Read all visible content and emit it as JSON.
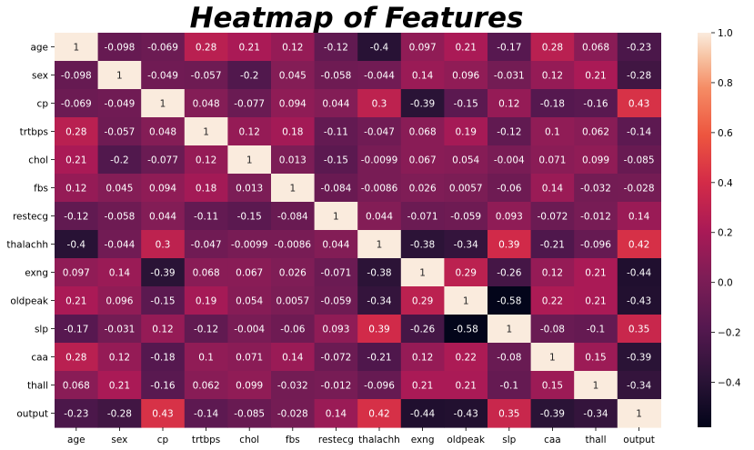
{
  "chart_data": {
    "type": "heatmap",
    "title": "Heatmap of Features",
    "labels": [
      "age",
      "sex",
      "cp",
      "trtbps",
      "chol",
      "fbs",
      "restecg",
      "thalachh",
      "exng",
      "oldpeak",
      "slp",
      "caa",
      "thall",
      "output"
    ],
    "matrix": [
      [
        1,
        -0.098,
        -0.069,
        0.28,
        0.21,
        0.12,
        -0.12,
        -0.4,
        0.097,
        0.21,
        -0.17,
        0.28,
        0.068,
        -0.23
      ],
      [
        -0.098,
        1,
        -0.049,
        -0.057,
        -0.2,
        0.045,
        -0.058,
        -0.044,
        0.14,
        0.096,
        -0.031,
        0.12,
        0.21,
        -0.28
      ],
      [
        -0.069,
        -0.049,
        1,
        0.048,
        -0.077,
        0.094,
        0.044,
        0.3,
        -0.39,
        -0.15,
        0.12,
        -0.18,
        -0.16,
        0.43
      ],
      [
        0.28,
        -0.057,
        0.048,
        1,
        0.12,
        0.18,
        -0.11,
        -0.047,
        0.068,
        0.19,
        -0.12,
        0.1,
        0.062,
        -0.14
      ],
      [
        0.21,
        -0.2,
        -0.077,
        0.12,
        1,
        0.013,
        -0.15,
        -0.0099,
        0.067,
        0.054,
        -0.004,
        0.071,
        0.099,
        -0.085
      ],
      [
        0.12,
        0.045,
        0.094,
        0.18,
        0.013,
        1,
        -0.084,
        -0.0086,
        0.026,
        0.0057,
        -0.06,
        0.14,
        -0.032,
        -0.028
      ],
      [
        -0.12,
        -0.058,
        0.044,
        -0.11,
        -0.15,
        -0.084,
        1,
        0.044,
        -0.071,
        -0.059,
        0.093,
        -0.072,
        -0.012,
        0.14
      ],
      [
        -0.4,
        -0.044,
        0.3,
        -0.047,
        -0.0099,
        -0.0086,
        0.044,
        1,
        -0.38,
        -0.34,
        0.39,
        -0.21,
        -0.096,
        0.42
      ],
      [
        0.097,
        0.14,
        -0.39,
        0.068,
        0.067,
        0.026,
        -0.071,
        -0.38,
        1,
        0.29,
        -0.26,
        0.12,
        0.21,
        -0.44
      ],
      [
        0.21,
        0.096,
        -0.15,
        0.19,
        0.054,
        0.0057,
        -0.059,
        -0.34,
        0.29,
        1,
        -0.58,
        0.22,
        0.21,
        -0.43
      ],
      [
        -0.17,
        -0.031,
        0.12,
        -0.12,
        -0.004,
        -0.06,
        0.093,
        0.39,
        -0.26,
        -0.58,
        1,
        -0.08,
        -0.1,
        0.35
      ],
      [
        0.28,
        0.12,
        -0.18,
        0.1,
        0.071,
        0.14,
        -0.072,
        -0.21,
        0.12,
        0.22,
        -0.08,
        1,
        0.15,
        -0.39
      ],
      [
        0.068,
        0.21,
        -0.16,
        0.062,
        0.099,
        -0.032,
        -0.012,
        -0.096,
        0.21,
        0.21,
        -0.1,
        0.15,
        1,
        -0.34
      ],
      [
        -0.23,
        -0.28,
        0.43,
        -0.14,
        -0.085,
        -0.028,
        0.14,
        0.42,
        -0.44,
        -0.43,
        0.35,
        -0.39,
        -0.34,
        1
      ]
    ],
    "vmin": -0.58,
    "vmax": 1,
    "colormap": "rocket",
    "colorbar_ticks": [
      1.0,
      0.8,
      0.6,
      0.4,
      0.2,
      0.0,
      -0.2,
      -0.4
    ],
    "colorbar_tick_labels": [
      "1.0",
      "0.8",
      "0.6",
      "0.4",
      "0.2",
      "0.0",
      "−0.2",
      "−0.4"
    ]
  }
}
